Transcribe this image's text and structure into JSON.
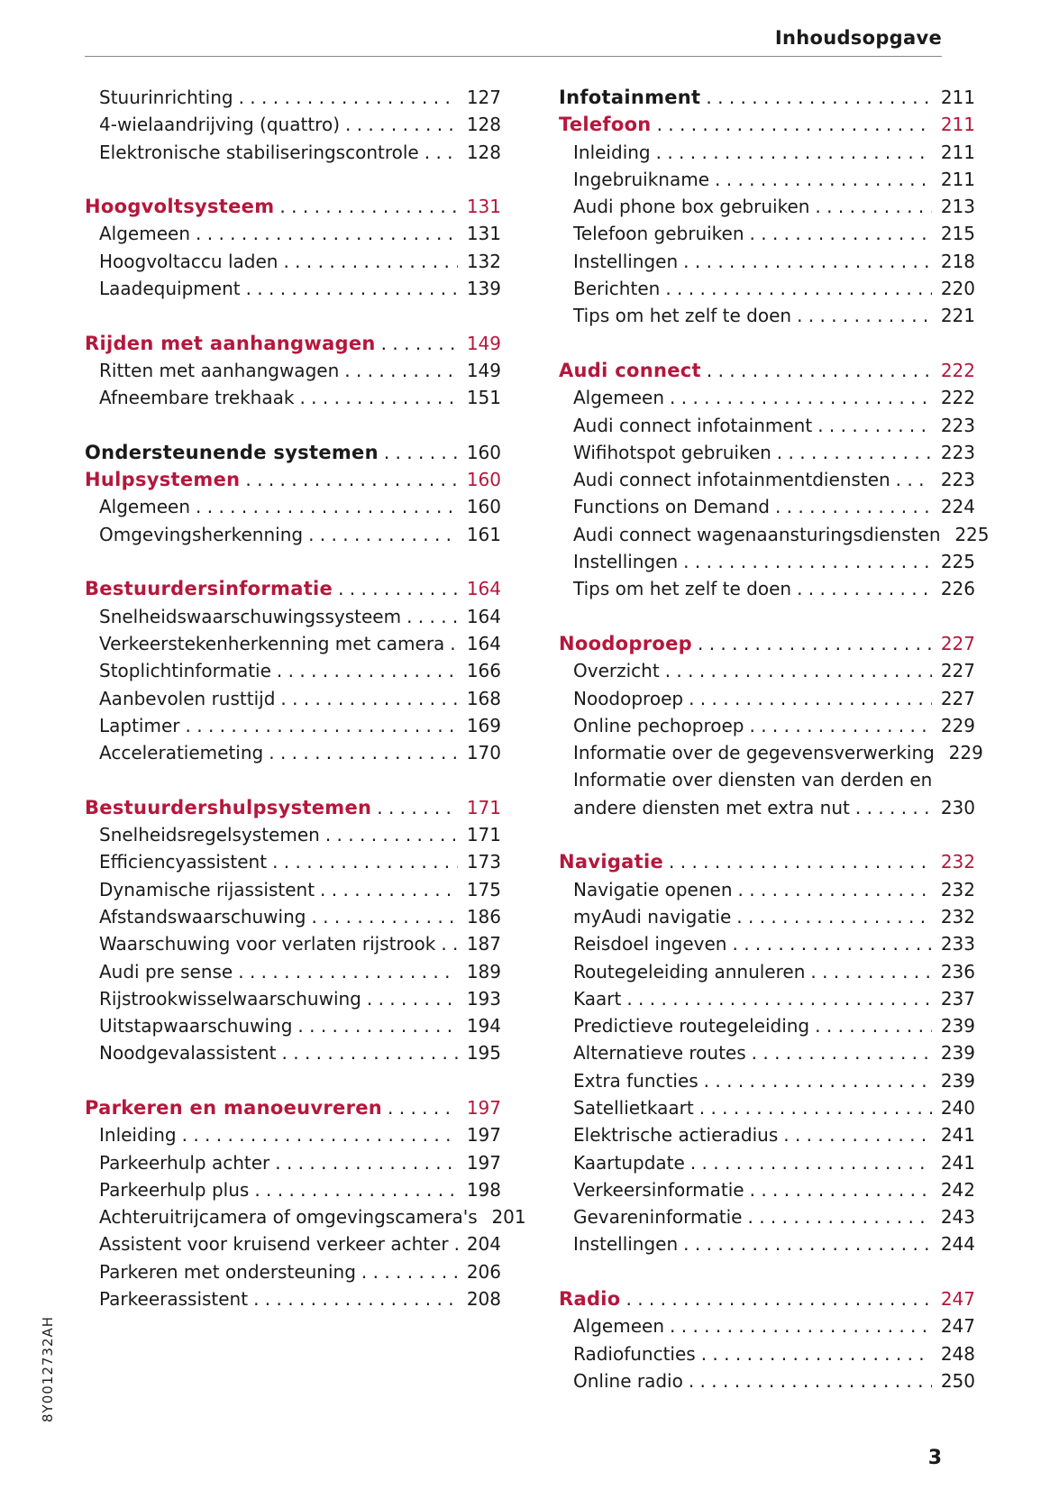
{
  "header": {
    "title": "Inhoudsopgave"
  },
  "footer": {
    "doc_id": "8Y0012732AH",
    "page_number": "3"
  },
  "colors": {
    "heading_red": "#b5173c",
    "text": "#1a1a1a"
  },
  "columns": {
    "left": [
      {
        "type": "sub",
        "label": "Stuurinrichting",
        "page": "127"
      },
      {
        "type": "sub",
        "label": "4-wielaandrijving (quattro)",
        "page": "128"
      },
      {
        "type": "sub",
        "label": "Elektronische stabiliseringscontrole",
        "page": "128"
      },
      {
        "type": "gap"
      },
      {
        "type": "head-red",
        "label": "Hoogvoltsysteem",
        "page": "131"
      },
      {
        "type": "sub",
        "label": "Algemeen",
        "page": "131"
      },
      {
        "type": "sub",
        "label": "Hoogvoltaccu laden",
        "page": "132"
      },
      {
        "type": "sub",
        "label": "Laadequipment",
        "page": "139"
      },
      {
        "type": "gap"
      },
      {
        "type": "head-red",
        "label": "Rijden met aanhangwagen",
        "page": "149"
      },
      {
        "type": "sub",
        "label": "Ritten met aanhangwagen",
        "page": "149"
      },
      {
        "type": "sub",
        "label": "Afneembare trekhaak",
        "page": "151"
      },
      {
        "type": "gap"
      },
      {
        "type": "head-black",
        "label": "Ondersteunende systemen",
        "page": "160"
      },
      {
        "type": "head-red",
        "label": "Hulpsystemen",
        "page": "160"
      },
      {
        "type": "sub",
        "label": "Algemeen",
        "page": "160"
      },
      {
        "type": "sub",
        "label": "Omgevingsherkenning",
        "page": "161"
      },
      {
        "type": "gap"
      },
      {
        "type": "head-red",
        "label": "Bestuurdersinformatie",
        "page": "164"
      },
      {
        "type": "sub",
        "label": "Snelheidswaarschuwingssysteem",
        "page": "164"
      },
      {
        "type": "sub",
        "label": "Verkeerstekenherkenning met camera",
        "page": "164"
      },
      {
        "type": "sub",
        "label": "Stoplichtinformatie",
        "page": "166"
      },
      {
        "type": "sub",
        "label": "Aanbevolen rusttijd",
        "page": "168"
      },
      {
        "type": "sub",
        "label": "Laptimer",
        "page": "169"
      },
      {
        "type": "sub",
        "label": "Acceleratiemeting",
        "page": "170"
      },
      {
        "type": "gap"
      },
      {
        "type": "head-red",
        "label": "Bestuurdershulpsystemen",
        "page": "171"
      },
      {
        "type": "sub",
        "label": "Snelheidsregelsystemen",
        "page": "171"
      },
      {
        "type": "sub",
        "label": "Efficiencyassistent",
        "page": "173"
      },
      {
        "type": "sub",
        "label": "Dynamische rijassistent",
        "page": "175"
      },
      {
        "type": "sub",
        "label": "Afstandswaarschuwing",
        "page": "186"
      },
      {
        "type": "sub",
        "label": "Waarschuwing voor verlaten rijstrook",
        "page": "187"
      },
      {
        "type": "sub",
        "label": "Audi pre sense",
        "page": "189"
      },
      {
        "type": "sub",
        "label": "Rijstrookwisselwaarschuwing",
        "page": "193"
      },
      {
        "type": "sub",
        "label": "Uitstapwaarschuwing",
        "page": "194"
      },
      {
        "type": "sub",
        "label": "Noodgevalassistent",
        "page": "195"
      },
      {
        "type": "gap"
      },
      {
        "type": "head-red",
        "label": "Parkeren en manoeuvreren",
        "page": "197"
      },
      {
        "type": "sub",
        "label": "Inleiding",
        "page": "197"
      },
      {
        "type": "sub",
        "label": "Parkeerhulp achter",
        "page": "197"
      },
      {
        "type": "sub",
        "label": "Parkeerhulp plus",
        "page": "198"
      },
      {
        "type": "sub",
        "label": "Achteruitrijcamera of omgevingscamera's",
        "page": "201"
      },
      {
        "type": "sub",
        "label": "Assistent voor kruisend verkeer achter",
        "page": "204"
      },
      {
        "type": "sub",
        "label": "Parkeren met ondersteuning",
        "page": "206"
      },
      {
        "type": "sub",
        "label": "Parkeerassistent",
        "page": "208"
      }
    ],
    "right": [
      {
        "type": "head-black",
        "label": "Infotainment",
        "page": "211"
      },
      {
        "type": "head-red",
        "label": "Telefoon",
        "page": "211"
      },
      {
        "type": "sub",
        "label": "Inleiding",
        "page": "211"
      },
      {
        "type": "sub",
        "label": "Ingebruikname",
        "page": "211"
      },
      {
        "type": "sub",
        "label": "Audi phone box gebruiken",
        "page": "213"
      },
      {
        "type": "sub",
        "label": "Telefoon gebruiken",
        "page": "215"
      },
      {
        "type": "sub",
        "label": "Instellingen",
        "page": "218"
      },
      {
        "type": "sub",
        "label": "Berichten",
        "page": "220"
      },
      {
        "type": "sub",
        "label": "Tips om het zelf te doen",
        "page": "221"
      },
      {
        "type": "gap"
      },
      {
        "type": "head-red",
        "label": "Audi connect",
        "page": "222"
      },
      {
        "type": "sub",
        "label": "Algemeen",
        "page": "222"
      },
      {
        "type": "sub",
        "label": "Audi connect infotainment",
        "page": "223"
      },
      {
        "type": "sub",
        "label": "Wifihotspot gebruiken",
        "page": "223"
      },
      {
        "type": "sub",
        "label": "Audi connect infotainmentdiensten",
        "page": "223"
      },
      {
        "type": "sub",
        "label": "Functions on Demand",
        "page": "224"
      },
      {
        "type": "sub",
        "label": "Audi connect wagenaansturingsdiensten",
        "page": "225"
      },
      {
        "type": "sub",
        "label": "Instellingen",
        "page": "225"
      },
      {
        "type": "sub",
        "label": "Tips om het zelf te doen",
        "page": "226"
      },
      {
        "type": "gap"
      },
      {
        "type": "head-red",
        "label": "Noodoproep",
        "page": "227"
      },
      {
        "type": "sub",
        "label": "Overzicht",
        "page": "227"
      },
      {
        "type": "sub",
        "label": "Noodoproep",
        "page": "227"
      },
      {
        "type": "sub",
        "label": "Online pechoproep",
        "page": "229"
      },
      {
        "type": "sub",
        "label": "Informatie over de gegevensverwerking",
        "page": "229"
      },
      {
        "type": "cont",
        "label": "Informatie over diensten van derden en"
      },
      {
        "type": "sub",
        "label": "andere diensten met extra nut",
        "page": "230"
      },
      {
        "type": "gap"
      },
      {
        "type": "head-red",
        "label": "Navigatie",
        "page": "232"
      },
      {
        "type": "sub",
        "label": "Navigatie openen",
        "page": "232"
      },
      {
        "type": "sub",
        "label": "myAudi navigatie",
        "page": "232"
      },
      {
        "type": "sub",
        "label": "Reisdoel ingeven",
        "page": "233"
      },
      {
        "type": "sub",
        "label": "Routegeleiding annuleren",
        "page": "236"
      },
      {
        "type": "sub",
        "label": "Kaart",
        "page": "237"
      },
      {
        "type": "sub",
        "label": "Predictieve routegeleiding",
        "page": "239"
      },
      {
        "type": "sub",
        "label": "Alternatieve routes",
        "page": "239"
      },
      {
        "type": "sub",
        "label": "Extra functies",
        "page": "239"
      },
      {
        "type": "sub",
        "label": "Satellietkaart",
        "page": "240"
      },
      {
        "type": "sub",
        "label": "Elektrische actieradius",
        "page": "241"
      },
      {
        "type": "sub",
        "label": "Kaartupdate",
        "page": "241"
      },
      {
        "type": "sub",
        "label": "Verkeersinformatie",
        "page": "242"
      },
      {
        "type": "sub",
        "label": "Gevareninformatie",
        "page": "243"
      },
      {
        "type": "sub",
        "label": "Instellingen",
        "page": "244"
      },
      {
        "type": "gap"
      },
      {
        "type": "head-red",
        "label": "Radio",
        "page": "247"
      },
      {
        "type": "sub",
        "label": "Algemeen",
        "page": "247"
      },
      {
        "type": "sub",
        "label": "Radiofuncties",
        "page": "248"
      },
      {
        "type": "sub",
        "label": "Online radio",
        "page": "250"
      }
    ]
  }
}
